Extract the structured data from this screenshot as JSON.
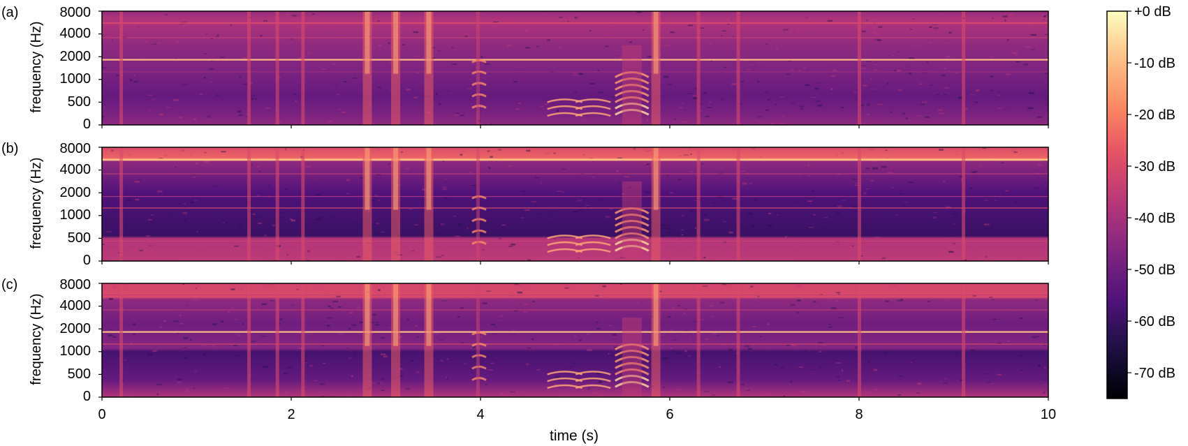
{
  "chart_data": {
    "type": "heatmap",
    "panels": [
      {
        "label": "(a)",
        "ylabel": "frequency (Hz)",
        "yticks": [
          "0",
          "500",
          "1000",
          "2000",
          "4000",
          "8000"
        ],
        "variant": "a"
      },
      {
        "label": "(b)",
        "ylabel": "frequency (Hz)",
        "yticks": [
          "0",
          "500",
          "1000",
          "2000",
          "4000",
          "8000"
        ],
        "variant": "b"
      },
      {
        "label": "(c)",
        "ylabel": "frequency (Hz)",
        "yticks": [
          "0",
          "500",
          "1000",
          "2000",
          "4000",
          "8000"
        ],
        "variant": "c"
      }
    ],
    "xlabel": "time (s)",
    "xlim": [
      0,
      10
    ],
    "xticks": [
      0,
      2,
      4,
      6,
      8,
      10
    ],
    "xtick_labels": [
      "0",
      "2",
      "4",
      "6",
      "8",
      "10"
    ],
    "colormap": "magma",
    "colorbar": {
      "range_db": [
        -75,
        0
      ],
      "ticks": [
        "+0 dB",
        "-10 dB",
        "-20 dB",
        "-30 dB",
        "-40 dB",
        "-50 dB",
        "-60 dB",
        "-70 dB"
      ],
      "tick_values": [
        0,
        -10,
        -20,
        -30,
        -40,
        -50,
        -60,
        -70
      ]
    },
    "events": [
      {
        "t": 0.2,
        "kind": "click"
      },
      {
        "t": 1.55,
        "kind": "click"
      },
      {
        "t": 1.85,
        "kind": "click"
      },
      {
        "t": 2.12,
        "kind": "click"
      },
      {
        "t": 2.8,
        "kind": "burst"
      },
      {
        "t": 3.1,
        "kind": "burst"
      },
      {
        "t": 3.45,
        "kind": "burst"
      },
      {
        "t": 3.97,
        "kind": "chirp"
      },
      {
        "t": 4.75,
        "kind": "tonal"
      },
      {
        "t": 5.05,
        "kind": "tonal"
      },
      {
        "t": 5.6,
        "kind": "harmonic"
      },
      {
        "t": 5.85,
        "kind": "burst"
      },
      {
        "t": 6.3,
        "kind": "click"
      },
      {
        "t": 6.72,
        "kind": "click"
      },
      {
        "t": 8.0,
        "kind": "click"
      },
      {
        "t": 9.1,
        "kind": "click"
      }
    ]
  }
}
